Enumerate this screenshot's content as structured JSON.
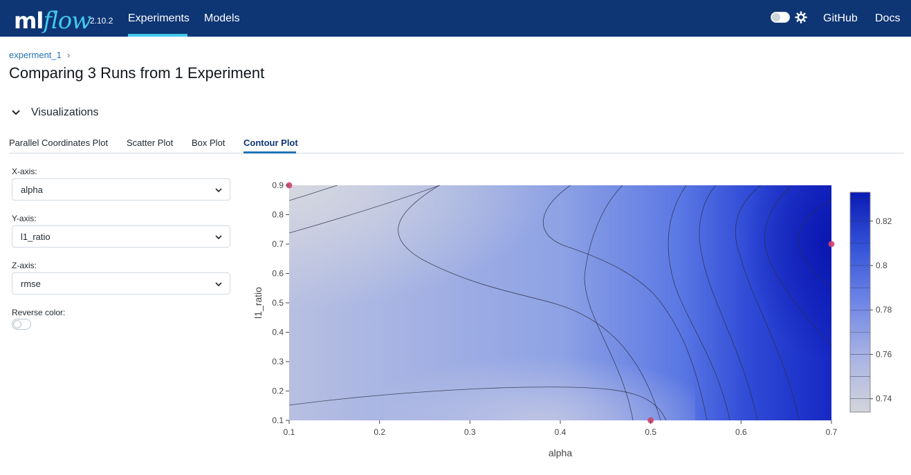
{
  "nav": {
    "logo_ml": "ml",
    "logo_flow": "flow",
    "version": "2.10.2",
    "experiments": "Experiments",
    "models": "Models",
    "github": "GitHub",
    "docs": "Docs"
  },
  "breadcrumb": {
    "experiment": "experment_1",
    "separator": "›"
  },
  "page_title": "Comparing 3 Runs from 1 Experiment",
  "visualizations": {
    "label": "Visualizations"
  },
  "tabs": [
    {
      "label": "Parallel Coordinates Plot"
    },
    {
      "label": "Scatter Plot"
    },
    {
      "label": "Box Plot"
    },
    {
      "label": "Contour Plot",
      "active": true
    }
  ],
  "controls": {
    "x_axis": {
      "label": "X-axis:",
      "value": "alpha"
    },
    "y_axis": {
      "label": "Y-axis:",
      "value": "l1_ratio"
    },
    "z_axis": {
      "label": "Z-axis:",
      "value": "rmse"
    },
    "reverse_color": {
      "label": "Reverse color:",
      "on": false
    }
  },
  "chart_data": {
    "type": "contour",
    "xlabel": "alpha",
    "ylabel": "l1_ratio",
    "xlim": [
      0.1,
      0.7
    ],
    "ylim": [
      0.1,
      0.9
    ],
    "xticks": [
      "0.1",
      "0.2",
      "0.3",
      "0.4",
      "0.5",
      "0.6",
      "0.7"
    ],
    "yticks": [
      "0.1",
      "0.2",
      "0.3",
      "0.4",
      "0.5",
      "0.6",
      "0.7",
      "0.8",
      "0.9"
    ],
    "points": [
      {
        "x": 0.1,
        "y": 0.9
      },
      {
        "x": 0.5,
        "y": 0.1
      },
      {
        "x": 0.7,
        "y": 0.7
      }
    ],
    "colorbar": {
      "range": [
        0.734,
        0.833
      ],
      "ticks": [
        "0.74",
        "0.76",
        "0.78",
        "0.8",
        "0.82"
      ],
      "low_color": "#d3d5db",
      "high_color": "#0a1ab5"
    }
  }
}
